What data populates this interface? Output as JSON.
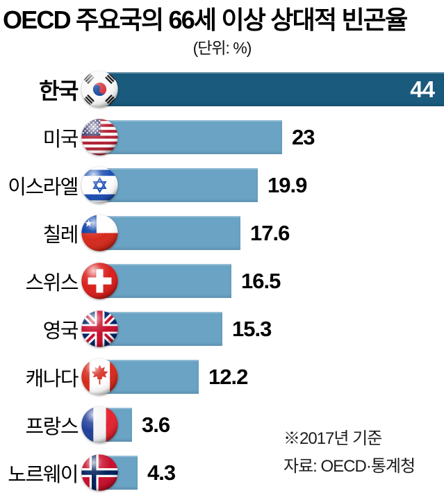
{
  "title": "OECD 주요국의 66세 이상 상대적 빈곤율",
  "unit_label": "(단위: %)",
  "notes": {
    "basis": "※2017년 기준",
    "source": "자료: OECD·통계청"
  },
  "colors": {
    "bar_highlight": "#1a5a7c",
    "bar_normal": "#6aa3c4",
    "value_inside": "#ffffff",
    "text": "#000000"
  },
  "chart_data": {
    "type": "bar",
    "orientation": "horizontal",
    "title": "OECD 주요국의 66세 이상 상대적 빈곤율",
    "unit": "%",
    "categories": [
      "한국",
      "미국",
      "이스라엘",
      "칠레",
      "스위스",
      "영국",
      "캐나다",
      "프랑스",
      "노르웨이"
    ],
    "values": [
      44,
      23,
      19.9,
      17.6,
      16.5,
      15.3,
      12.2,
      3.6,
      4.3
    ],
    "value_labels": [
      "44",
      "23",
      "19.9",
      "17.6",
      "16.5",
      "15.3",
      "12.2",
      "3.6",
      "4.3"
    ],
    "flags": [
      "kr",
      "us",
      "il",
      "cl",
      "ch",
      "gb",
      "ca",
      "fr",
      "no"
    ],
    "highlight_index": 0,
    "xlim": [
      0,
      44
    ],
    "grid": false,
    "legend": false,
    "annotations": [
      "※2017년 기준",
      "자료: OECD·통계청"
    ]
  }
}
